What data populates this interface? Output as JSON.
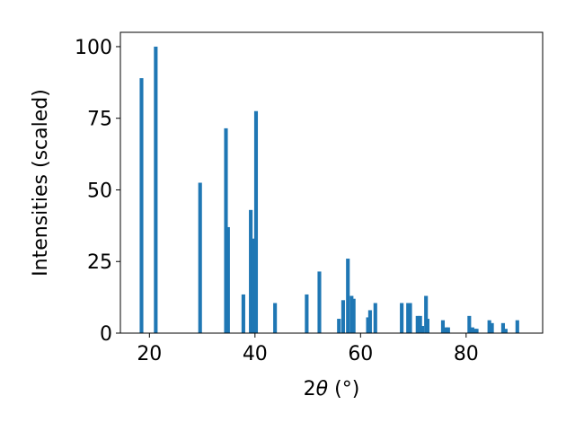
{
  "chart_data": {
    "type": "bar",
    "title": "",
    "xlabel_main": "2",
    "xlabel_theta": "θ",
    "xlabel_unit": " (°)",
    "ylabel": "Intensities (scaled)",
    "xlim": [
      14.5,
      94.5
    ],
    "ylim": [
      0,
      105
    ],
    "xticks": [
      20,
      40,
      60,
      80
    ],
    "yticks": [
      0,
      25,
      50,
      75,
      100
    ],
    "grid": false,
    "legend": "none",
    "bar_color": "#1f77b4",
    "bar_width": 0.7,
    "points": [
      {
        "x": 18.5,
        "y": 89
      },
      {
        "x": 21.2,
        "y": 100
      },
      {
        "x": 29.6,
        "y": 52.5
      },
      {
        "x": 34.5,
        "y": 71.5
      },
      {
        "x": 34.9,
        "y": 37
      },
      {
        "x": 37.8,
        "y": 13.5
      },
      {
        "x": 39.2,
        "y": 43
      },
      {
        "x": 39.6,
        "y": 33
      },
      {
        "x": 40.2,
        "y": 77.5
      },
      {
        "x": 43.8,
        "y": 10.5
      },
      {
        "x": 49.8,
        "y": 13.5
      },
      {
        "x": 52.2,
        "y": 21.5
      },
      {
        "x": 55.9,
        "y": 5
      },
      {
        "x": 56.7,
        "y": 11.5
      },
      {
        "x": 57.6,
        "y": 26
      },
      {
        "x": 58.3,
        "y": 13
      },
      {
        "x": 58.7,
        "y": 12
      },
      {
        "x": 61.4,
        "y": 5.5
      },
      {
        "x": 61.8,
        "y": 8
      },
      {
        "x": 62.8,
        "y": 10.5
      },
      {
        "x": 67.8,
        "y": 10.5
      },
      {
        "x": 69.0,
        "y": 10.5
      },
      {
        "x": 69.4,
        "y": 10.5
      },
      {
        "x": 70.8,
        "y": 6
      },
      {
        "x": 71.3,
        "y": 6
      },
      {
        "x": 71.7,
        "y": 2.5
      },
      {
        "x": 72.4,
        "y": 13
      },
      {
        "x": 72.7,
        "y": 5
      },
      {
        "x": 75.6,
        "y": 4.5
      },
      {
        "x": 76.2,
        "y": 2
      },
      {
        "x": 76.6,
        "y": 2
      },
      {
        "x": 80.6,
        "y": 6
      },
      {
        "x": 81.2,
        "y": 2
      },
      {
        "x": 81.7,
        "y": 1.5
      },
      {
        "x": 82.0,
        "y": 1.5
      },
      {
        "x": 84.4,
        "y": 4.5
      },
      {
        "x": 84.9,
        "y": 3.5
      },
      {
        "x": 87.0,
        "y": 3.5
      },
      {
        "x": 87.5,
        "y": 1.5
      },
      {
        "x": 89.7,
        "y": 4.5
      }
    ]
  }
}
